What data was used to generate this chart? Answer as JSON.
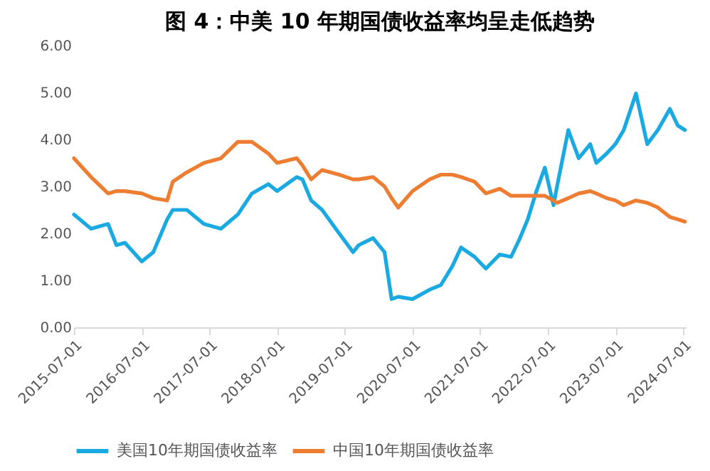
{
  "chart_data": {
    "type": "line",
    "title": "图 4：中美 10 年期国债收益率均呈走低趋势",
    "x": [
      "2015-07-01",
      "2015-10-01",
      "2016-01-01",
      "2016-02-15",
      "2016-04-01",
      "2016-07-01",
      "2016-09-01",
      "2016-11-15",
      "2016-12-15",
      "2017-03-01",
      "2017-06-01",
      "2017-09-01",
      "2017-12-01",
      "2018-02-15",
      "2018-05-15",
      "2018-07-01",
      "2018-10-15",
      "2018-11-15",
      "2019-01-01",
      "2019-03-01",
      "2019-06-01",
      "2019-08-15",
      "2019-09-15",
      "2019-12-01",
      "2020-02-01",
      "2020-03-10",
      "2020-04-15",
      "2020-07-01",
      "2020-10-01",
      "2020-12-01",
      "2021-02-01",
      "2021-03-20",
      "2021-06-01",
      "2021-08-01",
      "2021-10-15",
      "2021-12-15",
      "2022-02-01",
      "2022-03-15",
      "2022-05-01",
      "2022-06-15",
      "2022-08-01",
      "2022-08-20",
      "2022-10-20",
      "2022-12-15",
      "2023-02-15",
      "2023-03-20",
      "2023-05-15",
      "2023-07-01",
      "2023-08-15",
      "2023-10-20",
      "2023-12-20",
      "2024-02-15",
      "2024-04-20",
      "2024-06-01",
      "2024-07-10"
    ],
    "series": [
      {
        "name": "美国10年期国债收益率",
        "color": "#1ba9e1",
        "values": [
          2.4,
          2.1,
          2.2,
          1.75,
          1.8,
          1.4,
          1.6,
          2.3,
          2.5,
          2.5,
          2.2,
          2.1,
          2.4,
          2.85,
          3.05,
          2.9,
          3.2,
          3.15,
          2.7,
          2.5,
          2.0,
          1.6,
          1.75,
          1.9,
          1.6,
          0.6,
          0.65,
          0.6,
          0.8,
          0.9,
          1.3,
          1.7,
          1.5,
          1.25,
          1.55,
          1.5,
          1.9,
          2.3,
          2.9,
          3.4,
          2.6,
          3.0,
          4.2,
          3.6,
          3.9,
          3.5,
          3.7,
          3.9,
          4.2,
          4.98,
          3.9,
          4.2,
          4.65,
          4.3,
          4.2
        ]
      },
      {
        "name": "中国10年期国债收益率",
        "color": "#ed7d31",
        "values": [
          3.6,
          3.2,
          2.85,
          2.9,
          2.9,
          2.85,
          2.75,
          2.7,
          3.1,
          3.3,
          3.5,
          3.6,
          3.95,
          3.95,
          3.7,
          3.5,
          3.6,
          3.45,
          3.15,
          3.35,
          3.25,
          3.15,
          3.15,
          3.2,
          3.0,
          2.75,
          2.55,
          2.9,
          3.15,
          3.25,
          3.25,
          3.2,
          3.1,
          2.85,
          2.95,
          2.8,
          2.8,
          2.8,
          2.8,
          2.8,
          2.7,
          2.65,
          2.75,
          2.85,
          2.9,
          2.85,
          2.75,
          2.7,
          2.6,
          2.7,
          2.65,
          2.55,
          2.35,
          2.3,
          2.25
        ]
      }
    ],
    "xlim": [
      "2015-07-01",
      "2024-07-15"
    ],
    "xticks": [
      "2015-07-01",
      "2016-07-01",
      "2017-07-01",
      "2018-07-01",
      "2019-07-01",
      "2020-07-01",
      "2021-07-01",
      "2022-07-01",
      "2023-07-01",
      "2024-07-01"
    ],
    "ylim": [
      0,
      6
    ],
    "yticks": [
      {
        "value": 0,
        "label": "0.00"
      },
      {
        "value": 1,
        "label": "1.00"
      },
      {
        "value": 2,
        "label": "2.00"
      },
      {
        "value": 3,
        "label": "3.00"
      },
      {
        "value": 4,
        "label": "4.00"
      },
      {
        "value": 5,
        "label": "5.00"
      },
      {
        "value": 6,
        "label": "6.00"
      }
    ],
    "grid": false,
    "legend": "bottom",
    "marker": "none",
    "line_style": "solid"
  }
}
